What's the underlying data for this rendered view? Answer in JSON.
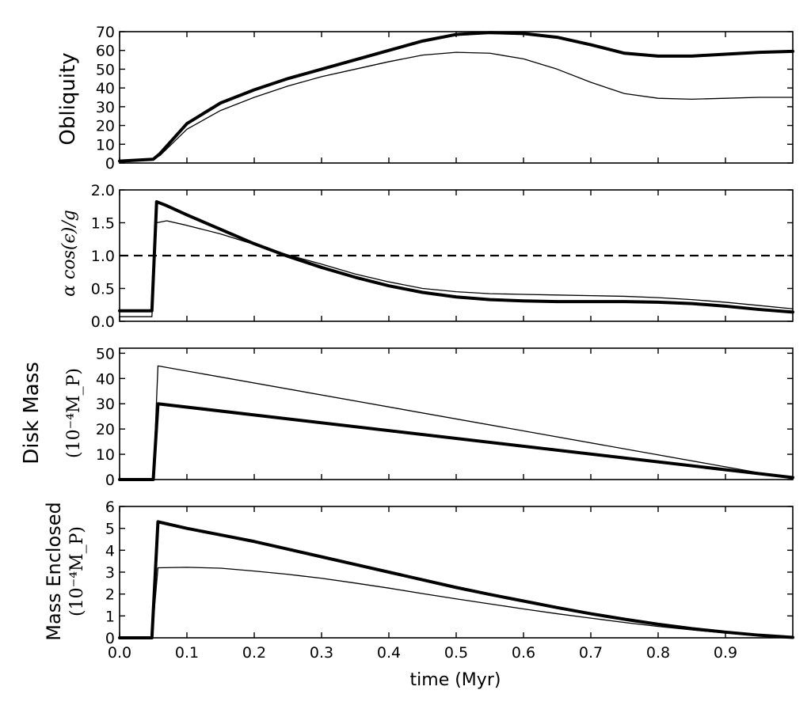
{
  "chart_data": [
    {
      "type": "line",
      "ylabel": "Obliquity",
      "ylim": [
        0,
        70
      ],
      "yticks": [
        "0",
        "10",
        "20",
        "30",
        "40",
        "50",
        "60",
        "70"
      ],
      "xlim": [
        0,
        1.0
      ],
      "series": [
        {
          "style": "thick",
          "x": [
            0,
            0.05,
            0.06,
            0.08,
            0.1,
            0.15,
            0.2,
            0.25,
            0.3,
            0.35,
            0.4,
            0.45,
            0.5,
            0.55,
            0.6,
            0.65,
            0.7,
            0.75,
            0.8,
            0.85,
            0.9,
            0.95,
            1.0
          ],
          "y": [
            1,
            2,
            5,
            13,
            21,
            32,
            39,
            45,
            50,
            55,
            60,
            65,
            68.5,
            69.5,
            69,
            67,
            63,
            58.5,
            57,
            57,
            58,
            59,
            59.5
          ]
        },
        {
          "style": "thin",
          "x": [
            0,
            0.05,
            0.06,
            0.08,
            0.1,
            0.15,
            0.2,
            0.25,
            0.3,
            0.35,
            0.4,
            0.45,
            0.5,
            0.55,
            0.6,
            0.65,
            0.7,
            0.75,
            0.8,
            0.85,
            0.9,
            0.95,
            1.0
          ],
          "y": [
            1,
            2,
            4,
            11,
            18,
            28,
            35,
            41,
            46,
            50,
            54,
            57.5,
            59,
            58.5,
            55.5,
            50,
            43,
            37,
            34.5,
            34,
            34.5,
            35,
            35
          ]
        }
      ]
    },
    {
      "type": "line",
      "ylabel": "α cos(ϵ)/g",
      "ylim": [
        0,
        2.0
      ],
      "yticks": [
        "0.0",
        "0.5",
        "1.0",
        "1.5",
        "2.0"
      ],
      "xlim": [
        0,
        1.0
      ],
      "reference_line": {
        "y": 1.0,
        "style": "dashed"
      },
      "series": [
        {
          "style": "thick",
          "x": [
            0,
            0.048,
            0.055,
            0.07,
            0.1,
            0.15,
            0.2,
            0.25,
            0.3,
            0.35,
            0.4,
            0.45,
            0.5,
            0.55,
            0.6,
            0.65,
            0.7,
            0.75,
            0.8,
            0.85,
            0.9,
            0.95,
            1.0
          ],
          "y": [
            0.16,
            0.16,
            1.82,
            1.76,
            1.62,
            1.4,
            1.18,
            0.99,
            0.82,
            0.67,
            0.54,
            0.44,
            0.37,
            0.33,
            0.31,
            0.3,
            0.3,
            0.3,
            0.29,
            0.27,
            0.23,
            0.18,
            0.14
          ]
        },
        {
          "style": "thin",
          "x": [
            0,
            0.048,
            0.055,
            0.07,
            0.1,
            0.15,
            0.2,
            0.25,
            0.3,
            0.35,
            0.4,
            0.45,
            0.5,
            0.55,
            0.6,
            0.65,
            0.7,
            0.75,
            0.8,
            0.85,
            0.9,
            0.95,
            1.0
          ],
          "y": [
            0.07,
            0.07,
            1.5,
            1.53,
            1.46,
            1.33,
            1.17,
            1.01,
            0.87,
            0.72,
            0.6,
            0.5,
            0.45,
            0.42,
            0.41,
            0.4,
            0.39,
            0.38,
            0.36,
            0.33,
            0.29,
            0.24,
            0.19
          ]
        }
      ]
    },
    {
      "type": "line",
      "ylabel": "Disk Mass",
      "ylabel_unit": "(10⁻⁴M_P)",
      "ylim": [
        0,
        52
      ],
      "yticks": [
        "0",
        "10",
        "20",
        "30",
        "40",
        "50"
      ],
      "xlim": [
        0,
        1.0
      ],
      "series": [
        {
          "style": "thick",
          "x": [
            0,
            0.05,
            0.057,
            1.0
          ],
          "y": [
            0,
            0,
            30,
            0.8
          ]
        },
        {
          "style": "thin",
          "x": [
            0,
            0.05,
            0.057,
            1.0
          ],
          "y": [
            0,
            0,
            45,
            0.3
          ]
        }
      ]
    },
    {
      "type": "line",
      "ylabel": "Mass Enclosed",
      "ylabel_unit": "(10⁻⁴M_P)",
      "ylim": [
        0,
        6
      ],
      "yticks": [
        "0",
        "1",
        "2",
        "3",
        "4",
        "5",
        "6"
      ],
      "xlim": [
        0,
        1.0
      ],
      "xticks": [
        "0.0",
        "0.1",
        "0.2",
        "0.3",
        "0.4",
        "0.5",
        "0.6",
        "0.7",
        "0.8",
        "0.9"
      ],
      "xlabel": "time (Myr)",
      "series": [
        {
          "style": "thick",
          "x": [
            0,
            0.048,
            0.057,
            0.1,
            0.15,
            0.2,
            0.25,
            0.3,
            0.35,
            0.4,
            0.45,
            0.5,
            0.55,
            0.6,
            0.65,
            0.7,
            0.75,
            0.8,
            0.85,
            0.9,
            0.95,
            1.0
          ],
          "y": [
            0,
            0,
            5.3,
            5.0,
            4.7,
            4.4,
            4.05,
            3.7,
            3.35,
            3.0,
            2.65,
            2.3,
            1.98,
            1.68,
            1.38,
            1.1,
            0.85,
            0.62,
            0.42,
            0.26,
            0.12,
            0.02
          ]
        },
        {
          "style": "thin",
          "x": [
            0,
            0.048,
            0.057,
            0.1,
            0.15,
            0.2,
            0.25,
            0.3,
            0.35,
            0.4,
            0.45,
            0.5,
            0.55,
            0.6,
            0.65,
            0.7,
            0.75,
            0.8,
            0.85,
            0.9,
            0.95,
            1.0
          ],
          "y": [
            0,
            0,
            3.2,
            3.22,
            3.18,
            3.05,
            2.9,
            2.72,
            2.5,
            2.27,
            2.02,
            1.78,
            1.55,
            1.32,
            1.1,
            0.9,
            0.7,
            0.52,
            0.36,
            0.22,
            0.1,
            0.02
          ]
        }
      ]
    }
  ]
}
